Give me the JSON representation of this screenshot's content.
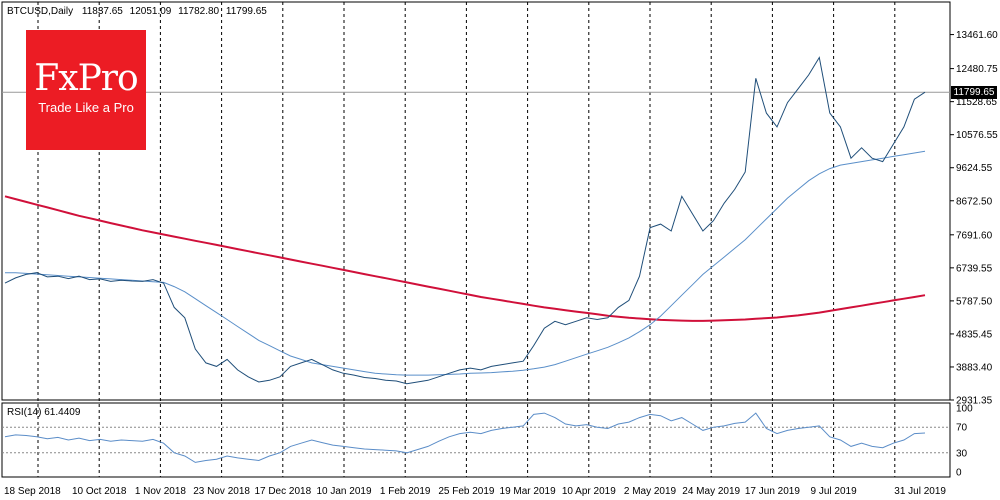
{
  "chart_data": {
    "type": "candlestick",
    "header": {
      "symbol": "BTCUSD,Daily",
      "open": "11837.65",
      "high": "12051.09",
      "low": "11782.80",
      "close": "11799.65"
    },
    "price_axis": {
      "ticks": [
        "13461.60",
        "12480.75",
        "11528.65",
        "10576.55",
        "9624.55",
        "8672.50",
        "7691.60",
        "6739.55",
        "5787.50",
        "4835.45",
        "3883.40",
        "2931.35"
      ],
      "ylim": [
        2931.35,
        14400
      ],
      "current_price": "11799.65",
      "current_value": 11799.65
    },
    "time_axis": {
      "ticks": [
        "18 Sep 2018",
        "10 Oct 2018",
        "1 Nov 2018",
        "23 Nov 2018",
        "17 Dec 2018",
        "10 Jan 2019",
        "1 Feb 2019",
        "25 Feb 2019",
        "19 Mar 2019",
        "10 Apr 2019",
        "2 May 2019",
        "24 May 2019",
        "17 Jun 2019",
        "9 Jul 2019",
        "31 Jul 2019"
      ]
    },
    "price_series": [
      6300,
      6450,
      6550,
      6600,
      6480,
      6500,
      6430,
      6500,
      6400,
      6420,
      6350,
      6380,
      6360,
      6350,
      6400,
      6300,
      5600,
      5300,
      4400,
      4000,
      3900,
      4100,
      3800,
      3600,
      3450,
      3500,
      3600,
      3900,
      4000,
      4100,
      3950,
      3800,
      3700,
      3650,
      3580,
      3550,
      3500,
      3480,
      3400,
      3450,
      3500,
      3600,
      3700,
      3800,
      3850,
      3800,
      3900,
      3950,
      4000,
      4050,
      4500,
      5000,
      5200,
      5100,
      5200,
      5300,
      5250,
      5300,
      5600,
      5800,
      6500,
      7900,
      8000,
      7800,
      8800,
      8300,
      7800,
      8100,
      8600,
      9000,
      9500,
      12200,
      11200,
      10800,
      11500,
      11900,
      12300,
      12800,
      11200,
      10800,
      9900,
      10200,
      9900,
      9800,
      10300,
      10800,
      11600,
      11800
    ],
    "ma_fast": [
      6600,
      6600,
      6580,
      6560,
      6540,
      6520,
      6500,
      6480,
      6460,
      6440,
      6420,
      6400,
      6380,
      6360,
      6340,
      6320,
      6200,
      6050,
      5850,
      5650,
      5450,
      5250,
      5050,
      4850,
      4650,
      4500,
      4350,
      4200,
      4100,
      4000,
      3950,
      3900,
      3850,
      3800,
      3750,
      3700,
      3680,
      3660,
      3650,
      3650,
      3650,
      3660,
      3670,
      3680,
      3700,
      3710,
      3720,
      3740,
      3760,
      3790,
      3830,
      3880,
      3950,
      4050,
      4150,
      4250,
      4350,
      4450,
      4580,
      4720,
      4900,
      5100,
      5350,
      5650,
      5950,
      6250,
      6550,
      6800,
      7050,
      7300,
      7550,
      7850,
      8150,
      8450,
      8750,
      9000,
      9250,
      9450,
      9600,
      9700,
      9750,
      9800,
      9850,
      9900,
      9950,
      10000,
      10050,
      10100
    ],
    "ma_slow": [
      8800,
      8720,
      8640,
      8560,
      8480,
      8400,
      8320,
      8240,
      8170,
      8100,
      8030,
      7960,
      7890,
      7820,
      7760,
      7700,
      7640,
      7580,
      7520,
      7460,
      7400,
      7340,
      7280,
      7220,
      7160,
      7100,
      7040,
      6980,
      6920,
      6860,
      6800,
      6740,
      6680,
      6620,
      6560,
      6500,
      6440,
      6380,
      6320,
      6260,
      6200,
      6140,
      6080,
      6020,
      5960,
      5900,
      5850,
      5800,
      5750,
      5700,
      5650,
      5600,
      5560,
      5520,
      5480,
      5440,
      5400,
      5360,
      5330,
      5300,
      5280,
      5260,
      5240,
      5230,
      5220,
      5210,
      5210,
      5220,
      5230,
      5240,
      5250,
      5270,
      5290,
      5310,
      5340,
      5370,
      5410,
      5450,
      5500,
      5550,
      5600,
      5650,
      5700,
      5750,
      5800,
      5850,
      5900,
      5950
    ],
    "rsi": {
      "label": "RSI(14) 61.4409",
      "ticks": [
        "100",
        "70",
        "30",
        "0"
      ],
      "levels": [
        70,
        30
      ],
      "ylim": [
        0,
        100
      ],
      "values": [
        55,
        58,
        57,
        55,
        52,
        54,
        50,
        53,
        49,
        51,
        48,
        50,
        49,
        48,
        51,
        45,
        30,
        25,
        15,
        18,
        20,
        25,
        22,
        20,
        18,
        25,
        30,
        40,
        45,
        50,
        46,
        42,
        40,
        38,
        36,
        35,
        34,
        33,
        30,
        35,
        40,
        48,
        55,
        60,
        62,
        60,
        65,
        68,
        70,
        72,
        90,
        92,
        85,
        75,
        72,
        74,
        70,
        68,
        75,
        78,
        85,
        90,
        88,
        80,
        85,
        75,
        65,
        70,
        72,
        76,
        78,
        92,
        68,
        60,
        65,
        68,
        70,
        72,
        55,
        50,
        40,
        45,
        40,
        38,
        45,
        50,
        60,
        61
      ]
    },
    "grid": "vertical-dashed",
    "colors": {
      "price": "#1f4e79",
      "ma_fast": "#5a8fc9",
      "ma_slow": "#d0103a",
      "rsi": "#5b8dc8",
      "axis": "#000000",
      "grid": "#000000"
    },
    "logo": {
      "name": "FxPro",
      "tagline": "Trade Like a Pro",
      "color": "#ec1c24"
    }
  }
}
